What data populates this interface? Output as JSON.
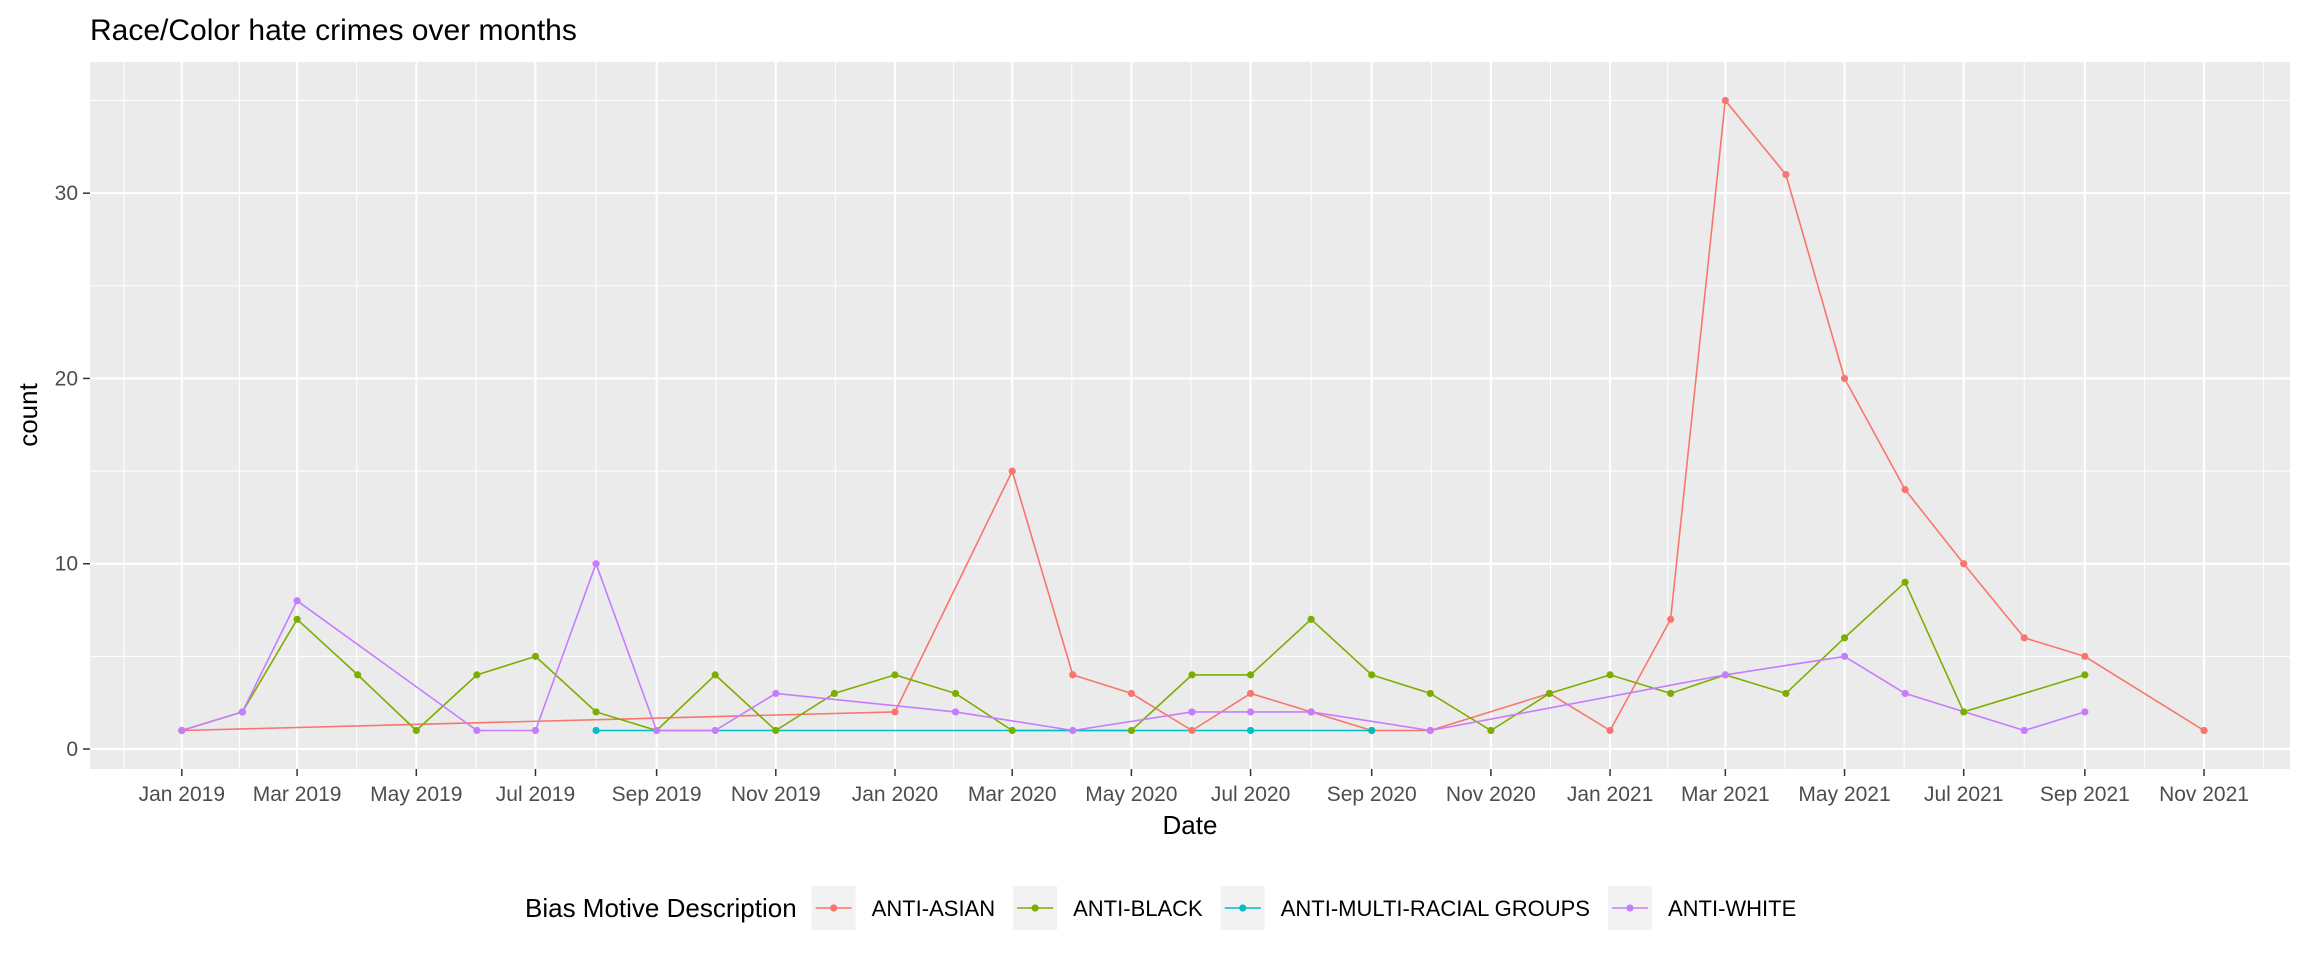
{
  "chart_data": {
    "type": "line",
    "title": "Race/Color hate crimes over months",
    "xlabel": "Date",
    "ylabel": "count",
    "x_ticks": [
      "2019-01",
      "2019-03",
      "2019-05",
      "2019-07",
      "2019-09",
      "2019-11",
      "2020-01",
      "2020-03",
      "2020-05",
      "2020-07",
      "2020-09",
      "2020-11",
      "2021-01",
      "2021-03",
      "2021-05",
      "2021-07",
      "2021-09",
      "2021-11"
    ],
    "x_tick_labels": [
      "Jan 2019",
      "Mar 2019",
      "May 2019",
      "Jul 2019",
      "Sep 2019",
      "Nov 2019",
      "Jan 2020",
      "Mar 2020",
      "May 2020",
      "Jul 2020",
      "Sep 2020",
      "Nov 2020",
      "Jan 2021",
      "Mar 2021",
      "May 2021",
      "Jul 2021",
      "Sep 2021",
      "Nov 2021"
    ],
    "y_ticks": [
      0,
      10,
      20,
      30
    ],
    "ylim": [
      0,
      36
    ],
    "xlim": [
      "2018-11-15",
      "2021-12-15"
    ],
    "grid": true,
    "legend_title": "Bias Motive Description",
    "legend_position": "bottom",
    "series": [
      {
        "name": "ANTI-ASIAN",
        "color": "#F8766D",
        "points": [
          {
            "x": "2019-01",
            "y": 1
          },
          {
            "x": "2020-01",
            "y": 2
          },
          {
            "x": "2020-03",
            "y": 15
          },
          {
            "x": "2020-04",
            "y": 4
          },
          {
            "x": "2020-05",
            "y": 3
          },
          {
            "x": "2020-06",
            "y": 1
          },
          {
            "x": "2020-07",
            "y": 3
          },
          {
            "x": "2020-08",
            "y": 2
          },
          {
            "x": "2020-09",
            "y": 1
          },
          {
            "x": "2020-10",
            "y": 1
          },
          {
            "x": "2020-12",
            "y": 3
          },
          {
            "x": "2021-01",
            "y": 1
          },
          {
            "x": "2021-02",
            "y": 7
          },
          {
            "x": "2021-03",
            "y": 35
          },
          {
            "x": "2021-04",
            "y": 31
          },
          {
            "x": "2021-05",
            "y": 20
          },
          {
            "x": "2021-06",
            "y": 14
          },
          {
            "x": "2021-07",
            "y": 10
          },
          {
            "x": "2021-08",
            "y": 6
          },
          {
            "x": "2021-09",
            "y": 5
          },
          {
            "x": "2021-11",
            "y": 1
          }
        ]
      },
      {
        "name": "ANTI-BLACK",
        "color": "#7CAE00",
        "points": [
          {
            "x": "2019-01",
            "y": 1
          },
          {
            "x": "2019-02",
            "y": 2
          },
          {
            "x": "2019-03",
            "y": 7
          },
          {
            "x": "2019-04",
            "y": 4
          },
          {
            "x": "2019-05",
            "y": 1
          },
          {
            "x": "2019-06",
            "y": 4
          },
          {
            "x": "2019-07",
            "y": 5
          },
          {
            "x": "2019-08",
            "y": 2
          },
          {
            "x": "2019-09",
            "y": 1
          },
          {
            "x": "2019-10",
            "y": 4
          },
          {
            "x": "2019-11",
            "y": 1
          },
          {
            "x": "2019-12",
            "y": 3
          },
          {
            "x": "2020-01",
            "y": 4
          },
          {
            "x": "2020-02",
            "y": 3
          },
          {
            "x": "2020-03",
            "y": 1
          },
          {
            "x": "2020-05",
            "y": 1
          },
          {
            "x": "2020-06",
            "y": 4
          },
          {
            "x": "2020-07",
            "y": 4
          },
          {
            "x": "2020-08",
            "y": 7
          },
          {
            "x": "2020-09",
            "y": 4
          },
          {
            "x": "2020-10",
            "y": 3
          },
          {
            "x": "2020-11",
            "y": 1
          },
          {
            "x": "2020-12",
            "y": 3
          },
          {
            "x": "2021-01",
            "y": 4
          },
          {
            "x": "2021-02",
            "y": 3
          },
          {
            "x": "2021-03",
            "y": 4
          },
          {
            "x": "2021-04",
            "y": 3
          },
          {
            "x": "2021-05",
            "y": 6
          },
          {
            "x": "2021-06",
            "y": 9
          },
          {
            "x": "2021-07",
            "y": 2
          },
          {
            "x": "2021-09",
            "y": 4
          }
        ]
      },
      {
        "name": "ANTI-MULTI-RACIAL GROUPS",
        "color": "#00BFC4",
        "points": [
          {
            "x": "2019-08",
            "y": 1
          },
          {
            "x": "2020-07",
            "y": 1
          },
          {
            "x": "2020-09",
            "y": 1
          }
        ]
      },
      {
        "name": "ANTI-WHITE",
        "color": "#C77CFF",
        "points": [
          {
            "x": "2019-01",
            "y": 1
          },
          {
            "x": "2019-02",
            "y": 2
          },
          {
            "x": "2019-03",
            "y": 8
          },
          {
            "x": "2019-06",
            "y": 1
          },
          {
            "x": "2019-07",
            "y": 1
          },
          {
            "x": "2019-08",
            "y": 10
          },
          {
            "x": "2019-09",
            "y": 1
          },
          {
            "x": "2019-10",
            "y": 1
          },
          {
            "x": "2019-11",
            "y": 3
          },
          {
            "x": "2020-02",
            "y": 2
          },
          {
            "x": "2020-04",
            "y": 1
          },
          {
            "x": "2020-06",
            "y": 2
          },
          {
            "x": "2020-07",
            "y": 2
          },
          {
            "x": "2020-08",
            "y": 2
          },
          {
            "x": "2020-10",
            "y": 1
          },
          {
            "x": "2021-03",
            "y": 4
          },
          {
            "x": "2021-05",
            "y": 5
          },
          {
            "x": "2021-06",
            "y": 3
          },
          {
            "x": "2021-08",
            "y": 1
          },
          {
            "x": "2021-09",
            "y": 2
          }
        ]
      }
    ]
  }
}
